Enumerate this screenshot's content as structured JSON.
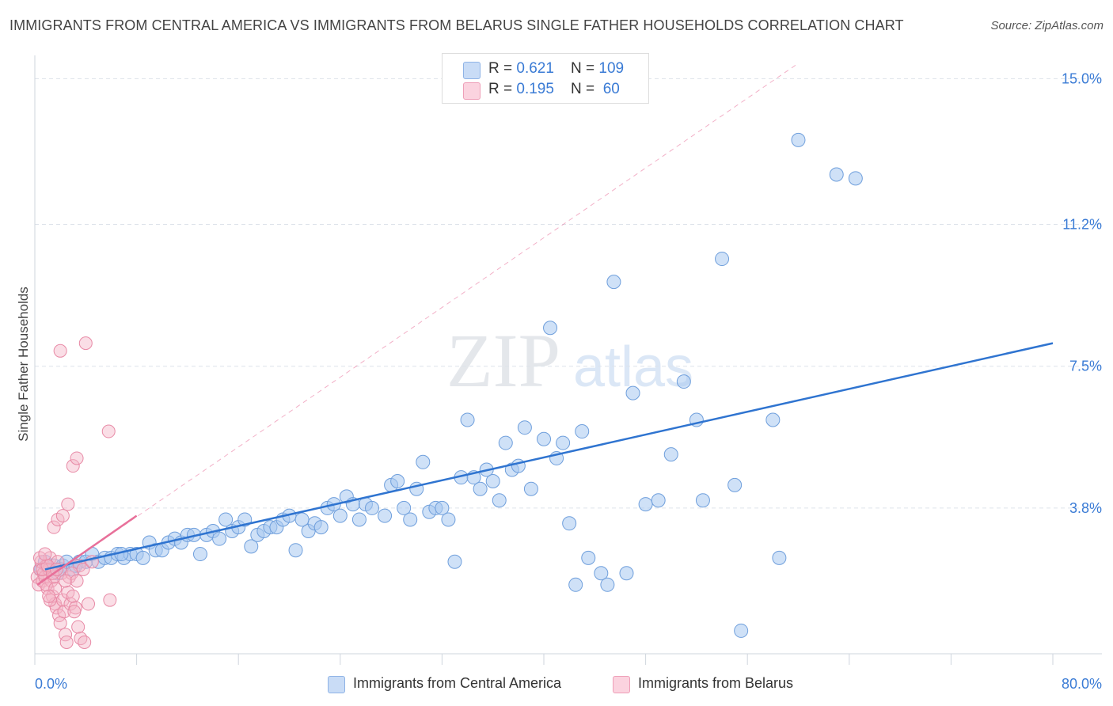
{
  "title": "IMMIGRANTS FROM CENTRAL AMERICA VS IMMIGRANTS FROM BELARUS SINGLE FATHER HOUSEHOLDS CORRELATION CHART",
  "source": "Source: ZipAtlas.com",
  "watermark": {
    "zip": "ZIP",
    "atlas": "atlas"
  },
  "legend_top": [
    {
      "r_label": "R = ",
      "r_value": "0.621",
      "n_label": "N = ",
      "n_value": "109",
      "color": "#a8c8f0"
    },
    {
      "r_label": "R = ",
      "r_value": "0.195",
      "n_label": "N = ",
      "n_value": " 60",
      "color": "#f5b6c8"
    }
  ],
  "legend_bottom": [
    {
      "label": "Immigrants from Central America",
      "color": "#a8c8f0"
    },
    {
      "label": "Immigrants from Belarus",
      "color": "#f5b6c8"
    }
  ],
  "colors": {
    "blue_fill": "#a8c8f0",
    "blue_stroke": "#6f9fdc",
    "blue_line": "#2f74d0",
    "pink_fill": "#f5b6c8",
    "pink_stroke": "#e88aa6",
    "pink_line": "#e8709a",
    "grid": "#dde3ea",
    "axis_label": "#3a7bd5"
  },
  "chart_data": {
    "type": "scatter",
    "title": "IMMIGRANTS FROM CENTRAL AMERICA VS IMMIGRANTS FROM BELARUS SINGLE FATHER HOUSEHOLDS CORRELATION CHART",
    "xlabel": "",
    "ylabel": "Single Father Households",
    "xlim": [
      0,
      80
    ],
    "ylim": [
      0,
      15.4
    ],
    "x_tick_labels": [
      "0.0%",
      "80.0%"
    ],
    "y_ticks": [
      3.8,
      7.5,
      11.2,
      15.0
    ],
    "y_tick_labels": [
      "3.8%",
      "7.5%",
      "11.2%",
      "15.0%"
    ],
    "grid": true,
    "legend_position": "top-center",
    "series": [
      {
        "name": "Immigrants from Central America",
        "color": "#a8c8f0",
        "trend": {
          "x": [
            0.8,
            80
          ],
          "y": [
            2.2,
            8.1
          ]
        },
        "points": [
          [
            0.5,
            2.2
          ],
          [
            0.8,
            2.4
          ],
          [
            1.2,
            2.2
          ],
          [
            1.5,
            2.3
          ],
          [
            1.8,
            2.1
          ],
          [
            2.2,
            2.3
          ],
          [
            2.5,
            2.4
          ],
          [
            3.0,
            2.2
          ],
          [
            3.5,
            2.4
          ],
          [
            4.0,
            2.4
          ],
          [
            4.5,
            2.6
          ],
          [
            5.0,
            2.4
          ],
          [
            5.5,
            2.5
          ],
          [
            6.0,
            2.5
          ],
          [
            6.5,
            2.6
          ],
          [
            7.0,
            2.5
          ],
          [
            7.5,
            2.6
          ],
          [
            8.0,
            2.6
          ],
          [
            8.5,
            2.5
          ],
          [
            9.0,
            2.9
          ],
          [
            9.5,
            2.7
          ],
          [
            10.0,
            2.7
          ],
          [
            10.5,
            2.9
          ],
          [
            11.0,
            3.0
          ],
          [
            11.5,
            2.9
          ],
          [
            12.0,
            3.1
          ],
          [
            12.5,
            3.1
          ],
          [
            13.0,
            2.6
          ],
          [
            13.5,
            3.1
          ],
          [
            14.0,
            3.2
          ],
          [
            14.5,
            3.0
          ],
          [
            15.0,
            3.5
          ],
          [
            15.5,
            3.2
          ],
          [
            16.0,
            3.3
          ],
          [
            16.5,
            3.5
          ],
          [
            17.0,
            2.8
          ],
          [
            17.5,
            3.1
          ],
          [
            18.0,
            3.2
          ],
          [
            18.5,
            3.3
          ],
          [
            19.0,
            3.3
          ],
          [
            19.5,
            3.5
          ],
          [
            20.0,
            3.6
          ],
          [
            20.5,
            2.7
          ],
          [
            21.0,
            3.5
          ],
          [
            21.5,
            3.2
          ],
          [
            22.0,
            3.4
          ],
          [
            22.5,
            3.3
          ],
          [
            23.0,
            3.8
          ],
          [
            23.5,
            3.9
          ],
          [
            24.0,
            3.6
          ],
          [
            24.5,
            4.1
          ],
          [
            25.0,
            3.9
          ],
          [
            25.5,
            3.5
          ],
          [
            26.0,
            3.9
          ],
          [
            26.5,
            3.8
          ],
          [
            27.5,
            3.6
          ],
          [
            28.0,
            4.4
          ],
          [
            28.5,
            4.5
          ],
          [
            29.0,
            3.8
          ],
          [
            29.5,
            3.5
          ],
          [
            30.0,
            4.3
          ],
          [
            30.5,
            5.0
          ],
          [
            31.0,
            3.7
          ],
          [
            31.5,
            3.8
          ],
          [
            32.0,
            3.8
          ],
          [
            32.5,
            3.5
          ],
          [
            33.0,
            2.4
          ],
          [
            33.5,
            4.6
          ],
          [
            34.0,
            6.1
          ],
          [
            34.5,
            4.6
          ],
          [
            35.0,
            4.3
          ],
          [
            35.5,
            4.8
          ],
          [
            36.0,
            4.5
          ],
          [
            36.5,
            4.0
          ],
          [
            37.0,
            5.5
          ],
          [
            37.5,
            4.8
          ],
          [
            38.0,
            4.9
          ],
          [
            38.5,
            5.9
          ],
          [
            39.0,
            4.3
          ],
          [
            40.0,
            5.6
          ],
          [
            41.0,
            5.1
          ],
          [
            41.5,
            5.5
          ],
          [
            42.0,
            3.4
          ],
          [
            43.0,
            5.8
          ],
          [
            43.5,
            2.5
          ],
          [
            42.5,
            1.8
          ],
          [
            44.5,
            2.1
          ],
          [
            45.0,
            1.8
          ],
          [
            45.5,
            9.7
          ],
          [
            46.5,
            2.1
          ],
          [
            47.0,
            6.8
          ],
          [
            40.5,
            8.5
          ],
          [
            48.0,
            3.9
          ],
          [
            49.0,
            4.0
          ],
          [
            50.0,
            5.2
          ],
          [
            51.0,
            7.1
          ],
          [
            52.0,
            6.1
          ],
          [
            52.5,
            4.0
          ],
          [
            54.0,
            10.3
          ],
          [
            55.0,
            4.4
          ],
          [
            55.5,
            0.6
          ],
          [
            58.0,
            6.1
          ],
          [
            58.5,
            2.5
          ],
          [
            60.0,
            13.4
          ],
          [
            63.0,
            12.5
          ],
          [
            64.5,
            12.4
          ],
          [
            2.0,
            2.2
          ],
          [
            3.2,
            2.3
          ],
          [
            6.8,
            2.6
          ]
        ]
      },
      {
        "name": "Immigrants from Belarus",
        "color": "#f5b6c8",
        "trend": {
          "x": [
            0.2,
            8.0
          ],
          "y": [
            1.8,
            3.6
          ]
        },
        "reference_line": {
          "x": [
            0.2,
            60.0
          ],
          "y": [
            1.8,
            15.4
          ]
        },
        "points": [
          [
            0.2,
            2.0
          ],
          [
            0.3,
            1.8
          ],
          [
            0.4,
            2.2
          ],
          [
            0.5,
            2.4
          ],
          [
            0.6,
            1.9
          ],
          [
            0.7,
            2.1
          ],
          [
            0.8,
            2.0
          ],
          [
            0.9,
            2.3
          ],
          [
            1.0,
            1.7
          ],
          [
            1.1,
            2.2
          ],
          [
            1.2,
            2.5
          ],
          [
            1.3,
            1.9
          ],
          [
            1.4,
            1.5
          ],
          [
            1.5,
            2.0
          ],
          [
            1.6,
            1.3
          ],
          [
            1.7,
            1.2
          ],
          [
            1.8,
            2.4
          ],
          [
            1.9,
            1.0
          ],
          [
            2.0,
            0.8
          ],
          [
            2.1,
            2.1
          ],
          [
            2.2,
            1.4
          ],
          [
            2.3,
            1.1
          ],
          [
            2.4,
            0.5
          ],
          [
            2.5,
            0.3
          ],
          [
            2.6,
            1.6
          ],
          [
            2.7,
            2.0
          ],
          [
            2.8,
            1.3
          ],
          [
            3.0,
            1.5
          ],
          [
            3.2,
            1.2
          ],
          [
            3.5,
            2.3
          ],
          [
            1.5,
            3.3
          ],
          [
            1.8,
            3.5
          ],
          [
            2.2,
            3.6
          ],
          [
            2.6,
            3.9
          ],
          [
            3.0,
            4.9
          ],
          [
            3.3,
            5.1
          ],
          [
            2.0,
            7.9
          ],
          [
            4.0,
            8.1
          ],
          [
            5.8,
            5.8
          ],
          [
            5.9,
            1.4
          ],
          [
            2.9,
            2.1
          ],
          [
            3.8,
            2.2
          ],
          [
            0.6,
            2.2
          ],
          [
            1.0,
            2.3
          ],
          [
            1.4,
            2.1
          ],
          [
            0.9,
            1.8
          ],
          [
            1.2,
            1.4
          ],
          [
            1.6,
            1.7
          ],
          [
            3.1,
            1.1
          ],
          [
            3.4,
            0.7
          ],
          [
            3.6,
            0.4
          ],
          [
            3.9,
            0.3
          ],
          [
            4.2,
            1.3
          ],
          [
            0.4,
            2.5
          ],
          [
            0.8,
            2.6
          ],
          [
            1.7,
            2.2
          ],
          [
            2.4,
            1.9
          ],
          [
            3.3,
            1.9
          ],
          [
            4.5,
            2.4
          ],
          [
            1.1,
            1.5
          ]
        ]
      }
    ]
  }
}
